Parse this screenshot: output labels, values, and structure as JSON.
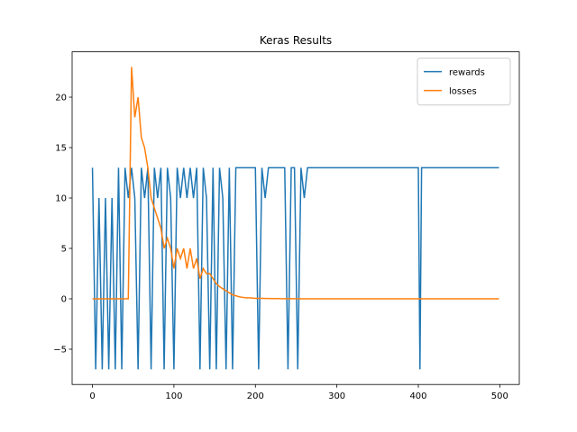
{
  "chart_data": {
    "type": "line",
    "title": "Keras Results",
    "x": [
      0,
      4,
      8,
      12,
      16,
      20,
      24,
      28,
      32,
      36,
      40,
      44,
      48,
      52,
      56,
      60,
      64,
      68,
      72,
      76,
      80,
      84,
      88,
      92,
      96,
      100,
      104,
      108,
      112,
      116,
      120,
      124,
      128,
      132,
      136,
      140,
      144,
      148,
      152,
      156,
      160,
      164,
      168,
      172,
      176,
      180,
      184,
      188,
      192,
      196,
      200,
      204,
      208,
      212,
      216,
      220,
      224,
      228,
      232,
      236,
      240,
      244,
      248,
      252,
      256,
      260,
      264,
      268,
      280,
      300,
      320,
      340,
      360,
      380,
      400,
      402,
      404,
      420,
      440,
      460,
      480,
      499
    ],
    "series": [
      {
        "name": "rewards",
        "color": "#1f77b4",
        "values": [
          13,
          -7,
          10,
          -7,
          10,
          -7,
          10,
          -7,
          13,
          -7,
          13,
          10,
          13,
          10,
          -7,
          13,
          10,
          13,
          -7,
          13,
          10,
          13,
          -7,
          13,
          10,
          -7,
          13,
          10,
          13,
          10,
          13,
          10,
          13,
          -7,
          13,
          10,
          -7,
          13,
          -7,
          13,
          10,
          -7,
          13,
          -7,
          13,
          13,
          13,
          13,
          13,
          13,
          13,
          -7,
          13,
          10,
          13,
          13,
          13,
          13,
          13,
          13,
          -7,
          13,
          13,
          -7,
          13,
          10,
          13,
          13,
          13,
          13,
          13,
          13,
          13,
          13,
          13,
          -7,
          13,
          13,
          13,
          13,
          13,
          13
        ]
      },
      {
        "name": "losses",
        "color": "#ff7f0e",
        "values": [
          0,
          0,
          0,
          0,
          0,
          0,
          0,
          0,
          0,
          0,
          0,
          0,
          23,
          18,
          20,
          16,
          15,
          13,
          10,
          9,
          8,
          7,
          5,
          6,
          5,
          3,
          5,
          4,
          5,
          3,
          5,
          3,
          4,
          2,
          3,
          2.5,
          2.5,
          2,
          1.5,
          1.2,
          1,
          0.8,
          0.6,
          0.4,
          0.3,
          0.2,
          0.15,
          0.1,
          0.1,
          0.08,
          0.05,
          0.05,
          0.04,
          0.03,
          0.03,
          0.02,
          0.02,
          0.02,
          0.01,
          0.01,
          0.01,
          0.01,
          0.01,
          0.01,
          0,
          0,
          0,
          0,
          0,
          0,
          0,
          0,
          0,
          0,
          0,
          0,
          0,
          0,
          0,
          0,
          0,
          0
        ]
      }
    ],
    "xlim": [
      -24.95,
      523.95
    ],
    "ylim": [
      -8.5,
      24.5
    ],
    "xticks": [
      0,
      100,
      200,
      300,
      400,
      500
    ],
    "yticks": [
      {
        "value": -5,
        "label": "−5"
      },
      0,
      5,
      10,
      15,
      20
    ],
    "legend": "upper right"
  }
}
